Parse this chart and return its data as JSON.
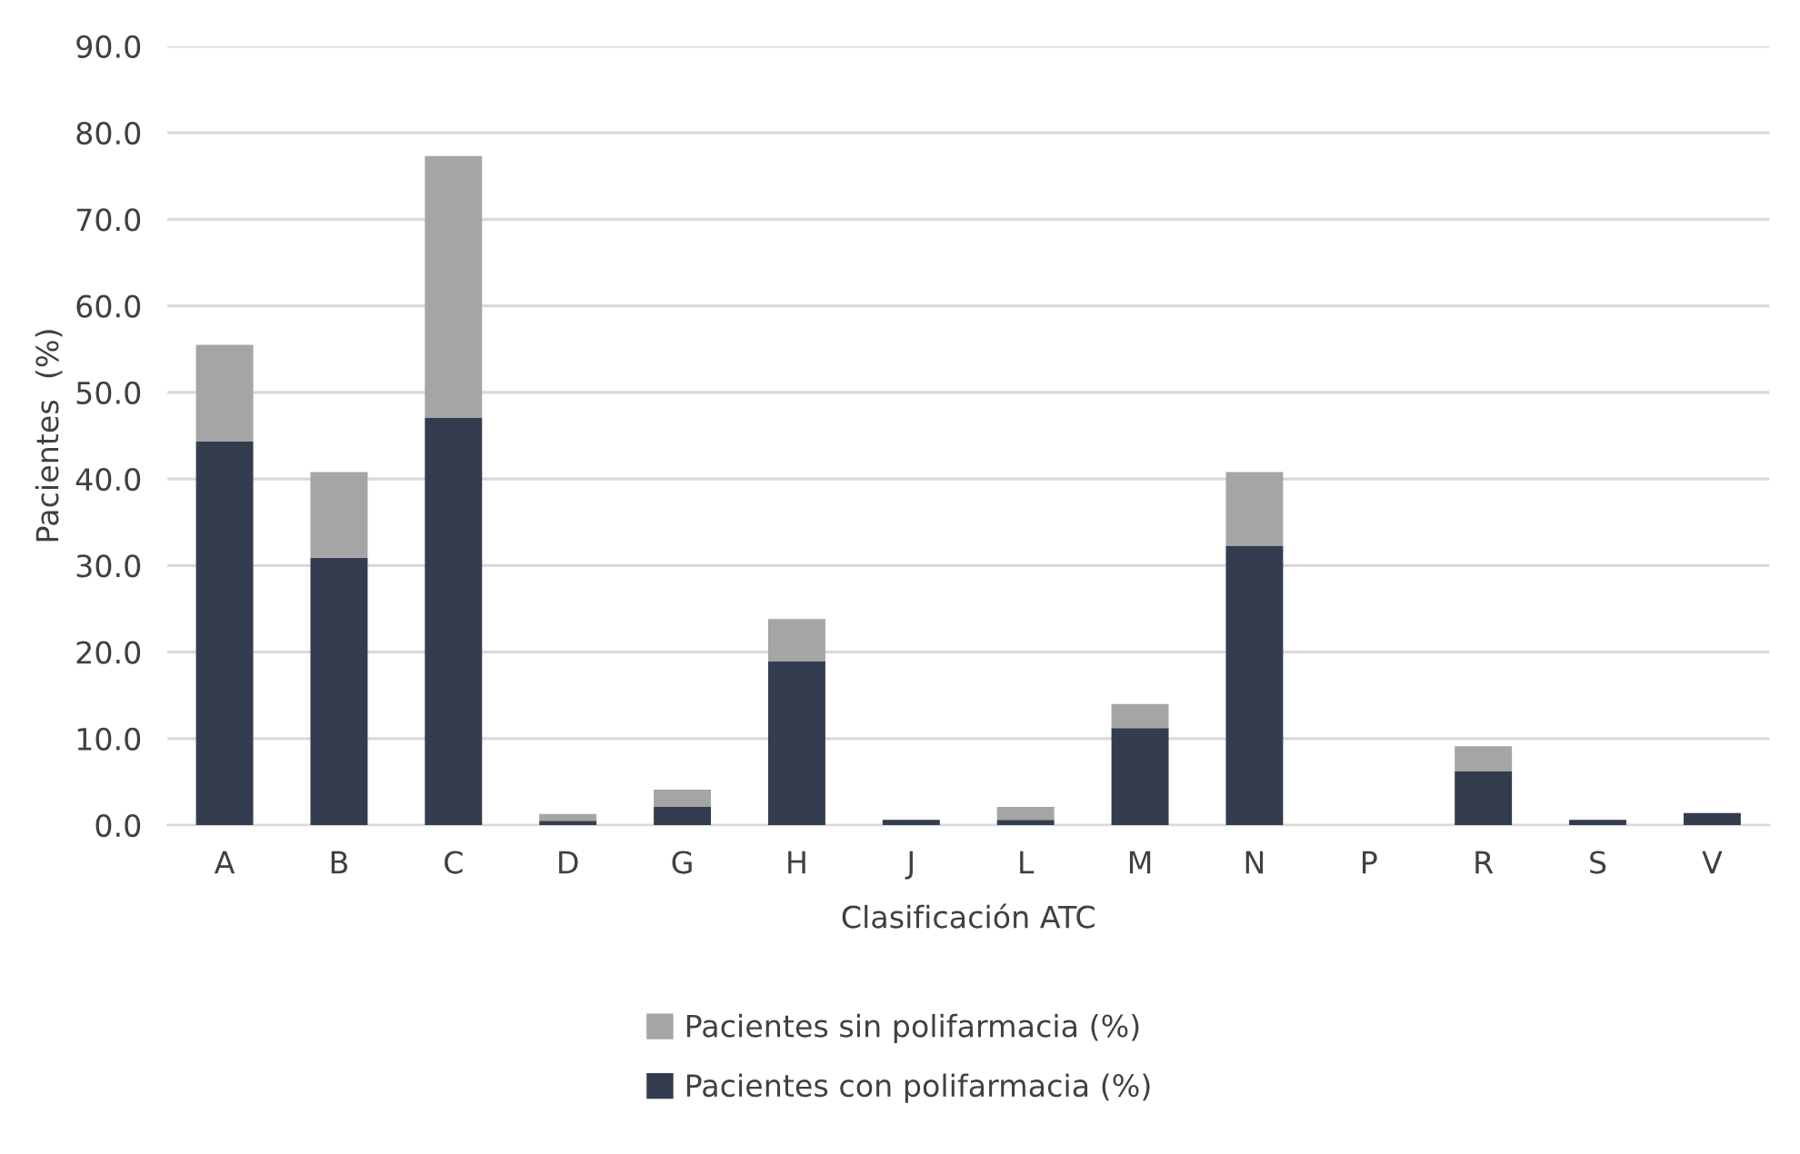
{
  "chart_data": {
    "type": "bar",
    "stacked": true,
    "xlabel": "Clasificación ATC",
    "ylabel": "Pacientes  (%)",
    "categories": [
      "A",
      "B",
      "C",
      "D",
      "G",
      "H",
      "J",
      "L",
      "M",
      "N",
      "P",
      "R",
      "S",
      "V"
    ],
    "series": [
      {
        "name": "Pacientes con polifarmacia (%)",
        "color": "#333d4f",
        "values": [
          44.3,
          30.9,
          47.1,
          0.5,
          2.1,
          18.9,
          0.6,
          0.6,
          11.2,
          32.3,
          0,
          6.2,
          0.6,
          1.4
        ]
      },
      {
        "name": "Pacientes sin polifarmacia (%)",
        "color": "#a5a5a5",
        "values": [
          11.2,
          9.9,
          30.2,
          0.8,
          2.0,
          4.9,
          0,
          1.5,
          2.8,
          8.5,
          0,
          2.9,
          0,
          0
        ]
      }
    ],
    "ylim": [
      0,
      90
    ],
    "yticks": [
      {
        "value": 0,
        "label": "0.0"
      },
      {
        "value": 10,
        "label": "10.0"
      },
      {
        "value": 20,
        "label": "20.0"
      },
      {
        "value": 30,
        "label": "30.0"
      },
      {
        "value": 40,
        "label": "40.0"
      },
      {
        "value": 50,
        "label": "50.0"
      },
      {
        "value": 60,
        "label": "60.0"
      },
      {
        "value": 70,
        "label": "70.0"
      },
      {
        "value": 80,
        "label": "80.0"
      },
      {
        "value": 90,
        "label": "90.0"
      }
    ],
    "grid": "y",
    "legend": "bottom"
  }
}
